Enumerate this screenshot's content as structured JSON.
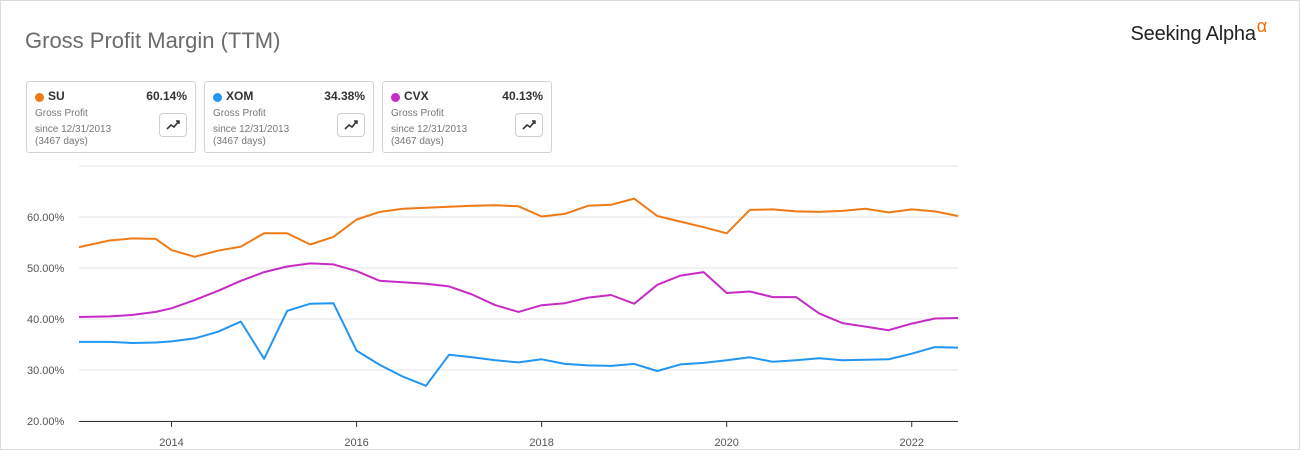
{
  "title": "Gross Profit Margin (TTM)",
  "brand": {
    "name": "Seeking Alpha",
    "mark": "α"
  },
  "cards": [
    {
      "symbol": "SU",
      "value": "60.14%",
      "metric": "Gross Profit",
      "since": "since 12/31/2013",
      "days": "(3467 days)",
      "color": "#f07a14",
      "icon": "chart-line-icon"
    },
    {
      "symbol": "XOM",
      "value": "34.38%",
      "metric": "Gross Profit",
      "since": "since 12/31/2013",
      "days": "(3467 days)",
      "color": "#2196f3",
      "icon": "chart-line-icon"
    },
    {
      "symbol": "CVX",
      "value": "40.13%",
      "metric": "Gross Profit",
      "since": "since 12/31/2013",
      "days": "(3467 days)",
      "color": "#c72bc6",
      "icon": "chart-line-icon"
    }
  ],
  "chart_data": {
    "type": "line",
    "title": "Gross Profit Margin (TTM)",
    "ylim": [
      20,
      70
    ],
    "y_ticks": [
      20,
      30,
      40,
      50,
      60
    ],
    "y_tick_labels": [
      "20.00%",
      "30.00%",
      "40.00%",
      "50.00%",
      "60.00%"
    ],
    "xlim": [
      2013.0,
      2022.5
    ],
    "x_ticks": [
      2014,
      2016,
      2018,
      2020,
      2022
    ],
    "x_tick_labels": [
      "2014",
      "2016",
      "2018",
      "2020",
      "2022"
    ],
    "grid": true,
    "series": [
      {
        "name": "SU",
        "color": "#f07a14",
        "x": [
          2013.0,
          2013.33,
          2013.58,
          2013.83,
          2014.0,
          2014.25,
          2014.5,
          2014.75,
          2015.0,
          2015.25,
          2015.5,
          2015.75,
          2016.0,
          2016.25,
          2016.5,
          2016.75,
          2017.0,
          2017.25,
          2017.5,
          2017.75,
          2018.0,
          2018.25,
          2018.5,
          2018.75,
          2019.0,
          2019.25,
          2019.5,
          2019.75,
          2020.0,
          2020.25,
          2020.5,
          2020.75,
          2021.0,
          2021.25,
          2021.5,
          2021.75,
          2022.0,
          2022.25,
          2022.5
        ],
        "values": [
          54.1,
          55.4,
          55.8,
          55.7,
          53.5,
          52.2,
          53.4,
          54.2,
          56.8,
          56.8,
          54.6,
          56.1,
          59.5,
          61.0,
          61.6,
          61.8,
          62.0,
          62.2,
          62.3,
          62.1,
          60.1,
          60.6,
          62.2,
          62.4,
          63.6,
          60.2,
          59.1,
          58.0,
          56.8,
          61.4,
          61.5,
          61.1,
          61.0,
          61.2,
          61.6,
          60.9,
          61.5,
          61.1,
          60.2
        ]
      },
      {
        "name": "XOM",
        "color": "#2196f3",
        "x": [
          2013.0,
          2013.33,
          2013.58,
          2013.83,
          2014.0,
          2014.25,
          2014.5,
          2014.75,
          2015.0,
          2015.25,
          2015.5,
          2015.75,
          2016.0,
          2016.25,
          2016.5,
          2016.75,
          2017.0,
          2017.25,
          2017.5,
          2017.75,
          2018.0,
          2018.25,
          2018.5,
          2018.75,
          2019.0,
          2019.25,
          2019.5,
          2019.75,
          2020.0,
          2020.25,
          2020.5,
          2020.75,
          2021.0,
          2021.25,
          2021.5,
          2021.75,
          2022.0,
          2022.25,
          2022.5
        ],
        "values": [
          35.5,
          35.5,
          35.3,
          35.4,
          35.6,
          36.2,
          37.5,
          39.5,
          32.2,
          41.6,
          43.0,
          43.1,
          33.8,
          31.0,
          28.7,
          26.9,
          33.0,
          32.5,
          31.9,
          31.5,
          32.1,
          31.2,
          30.9,
          30.8,
          31.2,
          29.8,
          31.1,
          31.4,
          31.9,
          32.5,
          31.6,
          31.9,
          32.3,
          31.9,
          32.0,
          32.1,
          33.2,
          34.5,
          34.4
        ]
      },
      {
        "name": "CVX",
        "color": "#c72bc6",
        "x": [
          2013.0,
          2013.33,
          2013.58,
          2013.83,
          2014.0,
          2014.25,
          2014.5,
          2014.75,
          2015.0,
          2015.25,
          2015.5,
          2015.75,
          2016.0,
          2016.25,
          2016.5,
          2016.75,
          2017.0,
          2017.25,
          2017.5,
          2017.75,
          2018.0,
          2018.25,
          2018.5,
          2018.75,
          2019.0,
          2019.25,
          2019.5,
          2019.75,
          2020.0,
          2020.25,
          2020.5,
          2020.75,
          2021.0,
          2021.25,
          2021.5,
          2021.75,
          2022.0,
          2022.25,
          2022.5
        ],
        "values": [
          40.4,
          40.5,
          40.8,
          41.4,
          42.1,
          43.7,
          45.5,
          47.5,
          49.2,
          50.3,
          50.9,
          50.7,
          49.4,
          47.5,
          47.2,
          46.9,
          46.4,
          44.8,
          42.7,
          41.4,
          42.7,
          43.1,
          44.2,
          44.7,
          43.0,
          46.7,
          48.5,
          49.2,
          45.1,
          45.4,
          44.3,
          44.3,
          41.1,
          39.2,
          38.5,
          37.8,
          39.1,
          40.1,
          40.2
        ]
      }
    ]
  }
}
